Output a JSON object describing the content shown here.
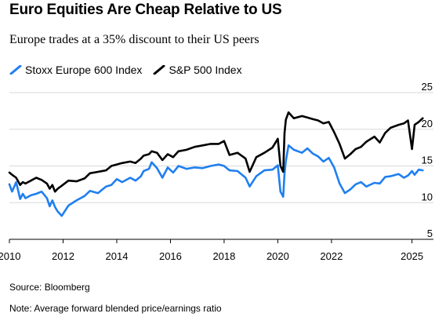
{
  "chart_data": {
    "type": "line",
    "title": "Euro Equities Are Cheap Relative to US",
    "subtitle": "Europe trades at a 35% discount to their US peers",
    "xlabel": "",
    "ylabel": "",
    "xlim": [
      2010,
      2025.8
    ],
    "ylim": [
      5,
      25
    ],
    "x_ticks": [
      2010,
      2012,
      2014,
      2016,
      2018,
      2020,
      2022,
      2025
    ],
    "x_tick_labels": [
      "2010",
      "2012",
      "2014",
      "2016",
      "2018",
      "2020",
      "2022",
      "2025"
    ],
    "y_ticks": [
      5,
      10,
      15,
      20,
      25
    ],
    "y_tick_labels": [
      "5",
      "10",
      "15",
      "20",
      "25"
    ],
    "y_axis_position": "right",
    "grid": "horizontal",
    "legend_position": "top-left",
    "series": [
      {
        "name": "Stoxx Europe 600 Index",
        "color": "#1f7ff0",
        "x": [
          2010.0,
          2010.1,
          2010.25,
          2010.4,
          2010.5,
          2010.6,
          2010.8,
          2011.0,
          2011.2,
          2011.4,
          2011.5,
          2011.6,
          2011.7,
          2011.8,
          2011.95,
          2012.2,
          2012.5,
          2012.8,
          2013.0,
          2013.3,
          2013.6,
          2013.8,
          2014.0,
          2014.2,
          2014.5,
          2014.7,
          2014.9,
          2015.0,
          2015.2,
          2015.3,
          2015.5,
          2015.7,
          2015.9,
          2016.1,
          2016.3,
          2016.6,
          2016.9,
          2017.2,
          2017.5,
          2017.8,
          2018.0,
          2018.2,
          2018.5,
          2018.8,
          2018.95,
          2019.2,
          2019.5,
          2019.8,
          2020.0,
          2020.1,
          2020.2,
          2020.25,
          2020.3,
          2020.4,
          2020.6,
          2020.9,
          2021.1,
          2021.3,
          2021.5,
          2021.7,
          2021.9,
          2022.1,
          2022.3,
          2022.5,
          2022.7,
          2022.9,
          2023.1,
          2023.3,
          2023.6,
          2023.8,
          2024.0,
          2024.2,
          2024.5,
          2024.7,
          2024.85,
          2025.0,
          2025.1,
          2025.25,
          2025.4
        ],
        "values": [
          12.5,
          11.5,
          12.8,
          10.5,
          11.2,
          10.6,
          11.0,
          11.2,
          11.5,
          10.6,
          9.5,
          10.3,
          9.4,
          8.8,
          8.2,
          9.6,
          10.3,
          10.9,
          11.6,
          11.3,
          12.2,
          12.4,
          13.2,
          12.8,
          13.4,
          13.0,
          13.6,
          14.3,
          14.6,
          15.5,
          14.7,
          13.4,
          14.8,
          14.1,
          15.0,
          14.6,
          14.8,
          14.7,
          15.0,
          15.2,
          15.0,
          14.4,
          14.3,
          13.4,
          12.2,
          13.6,
          14.4,
          14.5,
          15.1,
          11.5,
          10.8,
          14.0,
          15.7,
          17.8,
          17.2,
          16.8,
          17.4,
          16.7,
          16.3,
          15.6,
          16.1,
          14.8,
          12.6,
          11.3,
          11.8,
          12.5,
          12.8,
          12.2,
          12.7,
          12.6,
          13.5,
          13.6,
          13.9,
          13.4,
          13.7,
          14.3,
          13.8,
          14.5,
          14.4
        ]
      },
      {
        "name": "S&P 500 Index",
        "color": "#000000",
        "x": [
          2010.0,
          2010.1,
          2010.25,
          2010.4,
          2010.5,
          2010.6,
          2010.8,
          2011.0,
          2011.2,
          2011.4,
          2011.5,
          2011.6,
          2011.7,
          2011.8,
          2011.95,
          2012.2,
          2012.5,
          2012.8,
          2013.0,
          2013.3,
          2013.6,
          2013.8,
          2014.0,
          2014.2,
          2014.5,
          2014.7,
          2014.9,
          2015.0,
          2015.2,
          2015.3,
          2015.5,
          2015.7,
          2015.9,
          2016.1,
          2016.3,
          2016.6,
          2016.9,
          2017.2,
          2017.5,
          2017.8,
          2018.0,
          2018.2,
          2018.5,
          2018.8,
          2018.95,
          2019.2,
          2019.5,
          2019.8,
          2020.0,
          2020.1,
          2020.2,
          2020.25,
          2020.3,
          2020.4,
          2020.6,
          2020.9,
          2021.1,
          2021.3,
          2021.5,
          2021.7,
          2021.9,
          2022.1,
          2022.3,
          2022.5,
          2022.7,
          2022.9,
          2023.1,
          2023.3,
          2023.6,
          2023.8,
          2024.0,
          2024.2,
          2024.5,
          2024.7,
          2024.85,
          2025.0,
          2025.1,
          2025.25,
          2025.4
        ],
        "values": [
          14.1,
          13.8,
          13.4,
          12.4,
          12.8,
          12.6,
          13.0,
          13.4,
          13.1,
          12.6,
          11.9,
          12.4,
          11.5,
          11.9,
          12.3,
          13.0,
          12.9,
          13.3,
          14.0,
          14.2,
          14.4,
          15.0,
          15.2,
          15.4,
          15.6,
          15.4,
          16.0,
          16.4,
          16.6,
          17.0,
          16.8,
          15.8,
          16.6,
          16.2,
          17.0,
          17.2,
          17.6,
          17.8,
          18.0,
          18.0,
          18.4,
          16.5,
          16.8,
          16.0,
          14.2,
          16.2,
          16.8,
          17.5,
          18.7,
          15.0,
          14.2,
          19.5,
          21.3,
          22.3,
          21.5,
          21.8,
          21.6,
          21.4,
          21.2,
          20.8,
          21.0,
          19.6,
          18.0,
          16.0,
          16.6,
          17.3,
          17.6,
          18.3,
          19.0,
          18.2,
          19.5,
          20.2,
          20.6,
          20.8,
          21.2,
          17.3,
          20.6,
          21.0,
          21.5
        ]
      }
    ]
  },
  "source": "Source: Bloomberg",
  "note": "Note: Average forward blended price/earnings ratio"
}
